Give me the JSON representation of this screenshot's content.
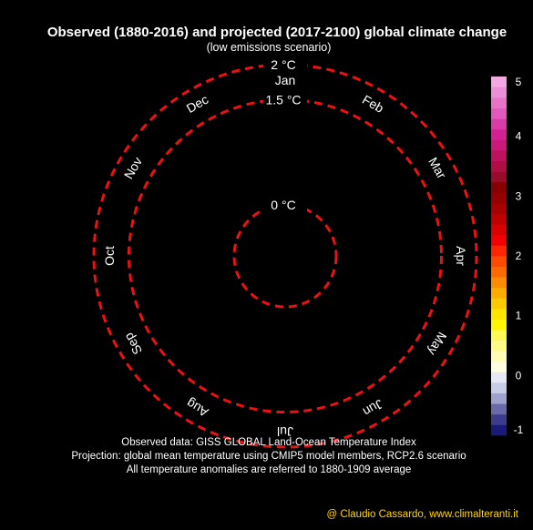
{
  "title": "Observed (1880-2016) and projected (2017-2100) global climate change",
  "subtitle": "(low emissions scenario)",
  "footer_lines": [
    "Observed data: GISS GLOBAL Land-Ocean Temperature Index",
    "Projection: global mean temperature using CMIP5 model members, RCP2.6 scenario",
    "All temperature anomalies are referred to 1880-1909 average"
  ],
  "credit": "@ Claudio Cassardo, www.climalteranti.it",
  "colors": {
    "background": "#000000",
    "text": "#ffffff",
    "rings": "#ee1111",
    "credit": "#ffd700"
  },
  "chart_data": {
    "type": "line",
    "chart_kind": "temperature spiral (polar)",
    "months": [
      "Jan",
      "Feb",
      "Mar",
      "Apr",
      "May",
      "Jun",
      "Jul",
      "Aug",
      "Sep",
      "Oct",
      "Nov",
      "Dec"
    ],
    "radial_axis": {
      "unit": "°C",
      "rings": [
        {
          "value": 0,
          "label": "0 °C"
        },
        {
          "value": 1.5,
          "label": "1.5 °C"
        },
        {
          "value": 2,
          "label": "2 °C"
        }
      ]
    },
    "series": [],
    "colorbar": {
      "range": [
        -1,
        5
      ],
      "ticks": [
        "5",
        "4",
        "3",
        "2",
        "1",
        "0",
        "-1"
      ],
      "segments": [
        "#1a1a7a",
        "#3c3c8c",
        "#6a6aaa",
        "#9ea2cc",
        "#c8cde6",
        "#e6e8f4",
        "#fffde0",
        "#fffcb8",
        "#fffa88",
        "#fff955",
        "#fff700",
        "#ffe400",
        "#ffc800",
        "#ffab00",
        "#ff8c00",
        "#ff6a00",
        "#ff4a00",
        "#ff2500",
        "#f20000",
        "#d80000",
        "#c00000",
        "#a80000",
        "#960000",
        "#880000",
        "#9a0a2a",
        "#b00d45",
        "#c0125c",
        "#cc1878",
        "#d42090",
        "#dc3aa8",
        "#e258bc",
        "#e874c8",
        "#ee8ed6",
        "#f4a8e2"
      ]
    }
  }
}
